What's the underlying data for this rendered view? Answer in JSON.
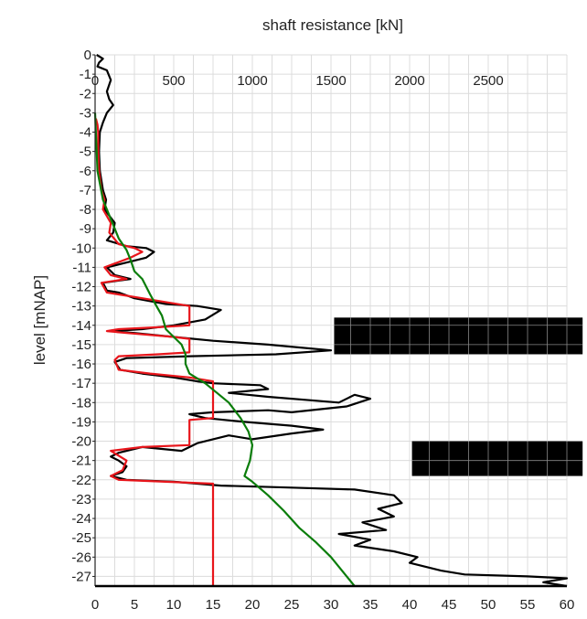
{
  "chart_data": {
    "type": "line",
    "title": "",
    "xlabel": "",
    "x2label": "shaft resistance [kN]",
    "ylabel": "level [mNAP]",
    "xlim": [
      0,
      60
    ],
    "x2lim": [
      0,
      3000
    ],
    "ylim": [
      -27.5,
      0
    ],
    "xticks": [
      0,
      5,
      10,
      15,
      20,
      25,
      30,
      35,
      40,
      45,
      50,
      55,
      60
    ],
    "x2ticks": [
      0,
      500,
      1000,
      1500,
      2000,
      2500
    ],
    "yticks": [
      0,
      -1,
      -2,
      -3,
      -4,
      -5,
      -6,
      -7,
      -8,
      -9,
      -10,
      -11,
      -12,
      -13,
      -14,
      -15,
      -16,
      -17,
      -18,
      -19,
      -20,
      -21,
      -22,
      -23,
      -24,
      -25,
      -26,
      -27
    ],
    "grid": true,
    "series": [
      {
        "color": "#000000",
        "points": [
          [
            0.2,
            0
          ],
          [
            1,
            -0.2
          ],
          [
            0.5,
            -0.4
          ],
          [
            0.3,
            -0.6
          ],
          [
            1.5,
            -0.8
          ],
          [
            2,
            -1.3
          ],
          [
            1.5,
            -1.9
          ],
          [
            1.8,
            -2.3
          ],
          [
            2.3,
            -2.6
          ],
          [
            1.5,
            -3.0
          ],
          [
            1.0,
            -3.5
          ],
          [
            0.6,
            -4.0
          ],
          [
            0.5,
            -5.0
          ],
          [
            0.6,
            -6.0
          ],
          [
            1.0,
            -7.0
          ],
          [
            1.4,
            -7.5
          ],
          [
            1.2,
            -8.0
          ],
          [
            2.5,
            -8.7
          ],
          [
            2.3,
            -9.2
          ],
          [
            1.5,
            -9.6
          ],
          [
            4,
            -9.9
          ],
          [
            6.5,
            -10.0
          ],
          [
            7.5,
            -10.2
          ],
          [
            6.5,
            -10.5
          ],
          [
            3.5,
            -10.8
          ],
          [
            1.5,
            -11.0
          ],
          [
            2.5,
            -11.4
          ],
          [
            4.5,
            -11.6
          ],
          [
            1.0,
            -11.8
          ],
          [
            1.5,
            -12.2
          ],
          [
            3,
            -12.3
          ],
          [
            5,
            -12.6
          ],
          [
            9,
            -12.9
          ],
          [
            13,
            -13.0
          ],
          [
            16,
            -13.2
          ],
          [
            14,
            -13.7
          ],
          [
            10,
            -14.0
          ],
          [
            6,
            -14.2
          ],
          [
            2,
            -14.3
          ],
          [
            5,
            -14.4
          ],
          [
            10,
            -14.6
          ],
          [
            15,
            -14.8
          ],
          [
            22,
            -15.0
          ],
          [
            30,
            -15.3
          ],
          [
            23,
            -15.5
          ],
          [
            12,
            -15.6
          ],
          [
            4,
            -15.7
          ],
          [
            2.5,
            -15.9
          ],
          [
            3.2,
            -16.3
          ],
          [
            6,
            -16.5
          ],
          [
            10,
            -16.7
          ],
          [
            13,
            -16.9
          ],
          [
            15,
            -17.0
          ],
          [
            21,
            -17.1
          ],
          [
            22,
            -17.3
          ],
          [
            17,
            -17.5
          ],
          [
            22,
            -17.7
          ],
          [
            28,
            -17.9
          ],
          [
            31,
            -18.0
          ],
          [
            33,
            -17.6
          ],
          [
            35,
            -17.8
          ],
          [
            32,
            -18.2
          ],
          [
            25,
            -18.5
          ],
          [
            22,
            -18.4
          ],
          [
            15,
            -18.5
          ],
          [
            12,
            -18.6
          ],
          [
            14,
            -18.8
          ],
          [
            19,
            -19.0
          ],
          [
            25,
            -19.2
          ],
          [
            29,
            -19.4
          ],
          [
            25,
            -19.6
          ],
          [
            20,
            -19.9
          ],
          [
            17,
            -19.7
          ],
          [
            13,
            -20.1
          ],
          [
            11,
            -20.5
          ],
          [
            6,
            -20.3
          ],
          [
            3,
            -20.6
          ],
          [
            2,
            -20.8
          ],
          [
            3,
            -21.0
          ],
          [
            4,
            -21.3
          ],
          [
            3.5,
            -21.6
          ],
          [
            2,
            -21.8
          ],
          [
            4,
            -22.0
          ],
          [
            10,
            -22.1
          ],
          [
            16,
            -22.3
          ],
          [
            25,
            -22.4
          ],
          [
            33,
            -22.5
          ],
          [
            38,
            -22.8
          ],
          [
            39,
            -23.2
          ],
          [
            36,
            -23.5
          ],
          [
            38,
            -23.9
          ],
          [
            34,
            -24.2
          ],
          [
            37,
            -24.6
          ],
          [
            31,
            -24.8
          ],
          [
            35,
            -25.1
          ],
          [
            33,
            -25.4
          ],
          [
            38,
            -25.7
          ],
          [
            41,
            -26.0
          ],
          [
            40,
            -26.3
          ],
          [
            44,
            -26.7
          ],
          [
            47,
            -26.9
          ],
          [
            55,
            -27.0
          ],
          [
            60,
            -27.1
          ],
          [
            57,
            -27.3
          ],
          [
            60,
            -27.5
          ]
        ]
      },
      {
        "color": "#e8151b",
        "points": [
          [
            0.1,
            -3.3
          ],
          [
            0.3,
            -3.6
          ],
          [
            0.4,
            -4.0
          ],
          [
            0.4,
            -5.0
          ],
          [
            0.5,
            -6.0
          ],
          [
            0.8,
            -7.0
          ],
          [
            1.2,
            -7.5
          ],
          [
            1.0,
            -8.0
          ],
          [
            2.0,
            -8.7
          ],
          [
            1.8,
            -9.2
          ],
          [
            3,
            -9.8
          ],
          [
            5,
            -10.0
          ],
          [
            6,
            -10.2
          ],
          [
            4.5,
            -10.5
          ],
          [
            2.5,
            -10.8
          ],
          [
            1.2,
            -11.0
          ],
          [
            2,
            -11.4
          ],
          [
            4,
            -11.6
          ],
          [
            0.8,
            -11.8
          ],
          [
            1.5,
            -12.3
          ],
          [
            3,
            -12.4
          ],
          [
            6,
            -12.6
          ],
          [
            9,
            -12.8
          ],
          [
            12,
            -13.0
          ],
          [
            12,
            -14.0
          ],
          [
            8,
            -14.1
          ],
          [
            3,
            -14.2
          ],
          [
            1.5,
            -14.3
          ],
          [
            4,
            -14.4
          ],
          [
            10,
            -14.6
          ],
          [
            12,
            -14.7
          ],
          [
            12,
            -15.4
          ],
          [
            8,
            -15.5
          ],
          [
            3,
            -15.6
          ],
          [
            2.5,
            -15.8
          ],
          [
            3,
            -16.3
          ],
          [
            7,
            -16.5
          ],
          [
            12,
            -16.7
          ],
          [
            15,
            -16.9
          ],
          [
            15,
            -18.8
          ],
          [
            12,
            -18.9
          ],
          [
            12,
            -20.2
          ],
          [
            6,
            -20.3
          ],
          [
            2,
            -20.5
          ],
          [
            4,
            -21.0
          ],
          [
            3.5,
            -21.5
          ],
          [
            2,
            -21.8
          ],
          [
            3,
            -22.0
          ],
          [
            9,
            -22.1
          ],
          [
            15,
            -22.2
          ],
          [
            15,
            -27.5
          ]
        ]
      },
      {
        "color": "#0a7d0a",
        "points": [
          [
            0,
            -3.0
          ],
          [
            0.3,
            -6.0
          ],
          [
            1,
            -7.5
          ],
          [
            2,
            -8.5
          ],
          [
            2.5,
            -9.0
          ],
          [
            3,
            -9.5
          ],
          [
            4,
            -10.1
          ],
          [
            4.5,
            -10.6
          ],
          [
            5,
            -11.2
          ],
          [
            6,
            -11.6
          ],
          [
            7,
            -12.4
          ],
          [
            7.8,
            -13.0
          ],
          [
            8.5,
            -13.5
          ],
          [
            9,
            -14.2
          ],
          [
            10,
            -14.6
          ],
          [
            11,
            -15.0
          ],
          [
            11.5,
            -15.5
          ],
          [
            11.5,
            -16.0
          ],
          [
            12,
            -16.5
          ],
          [
            14,
            -17.0
          ],
          [
            15.5,
            -17.5
          ],
          [
            17,
            -18.0
          ],
          [
            18.5,
            -18.8
          ],
          [
            19.5,
            -19.5
          ],
          [
            20,
            -20.2
          ],
          [
            19.7,
            -21.0
          ],
          [
            19,
            -21.8
          ],
          [
            20,
            -22.1
          ],
          [
            22,
            -22.8
          ],
          [
            24,
            -23.6
          ],
          [
            26,
            -24.5
          ],
          [
            28,
            -25.2
          ],
          [
            30,
            -26.0
          ],
          [
            32,
            -27.0
          ],
          [
            33,
            -27.5
          ]
        ]
      }
    ],
    "blocks": [
      {
        "x": [
          30.4,
          62
        ],
        "y": [
          -13.6,
          -15.5
        ]
      },
      {
        "x": [
          40.3,
          62
        ],
        "y": [
          -20.0,
          -21.8
        ]
      }
    ]
  }
}
